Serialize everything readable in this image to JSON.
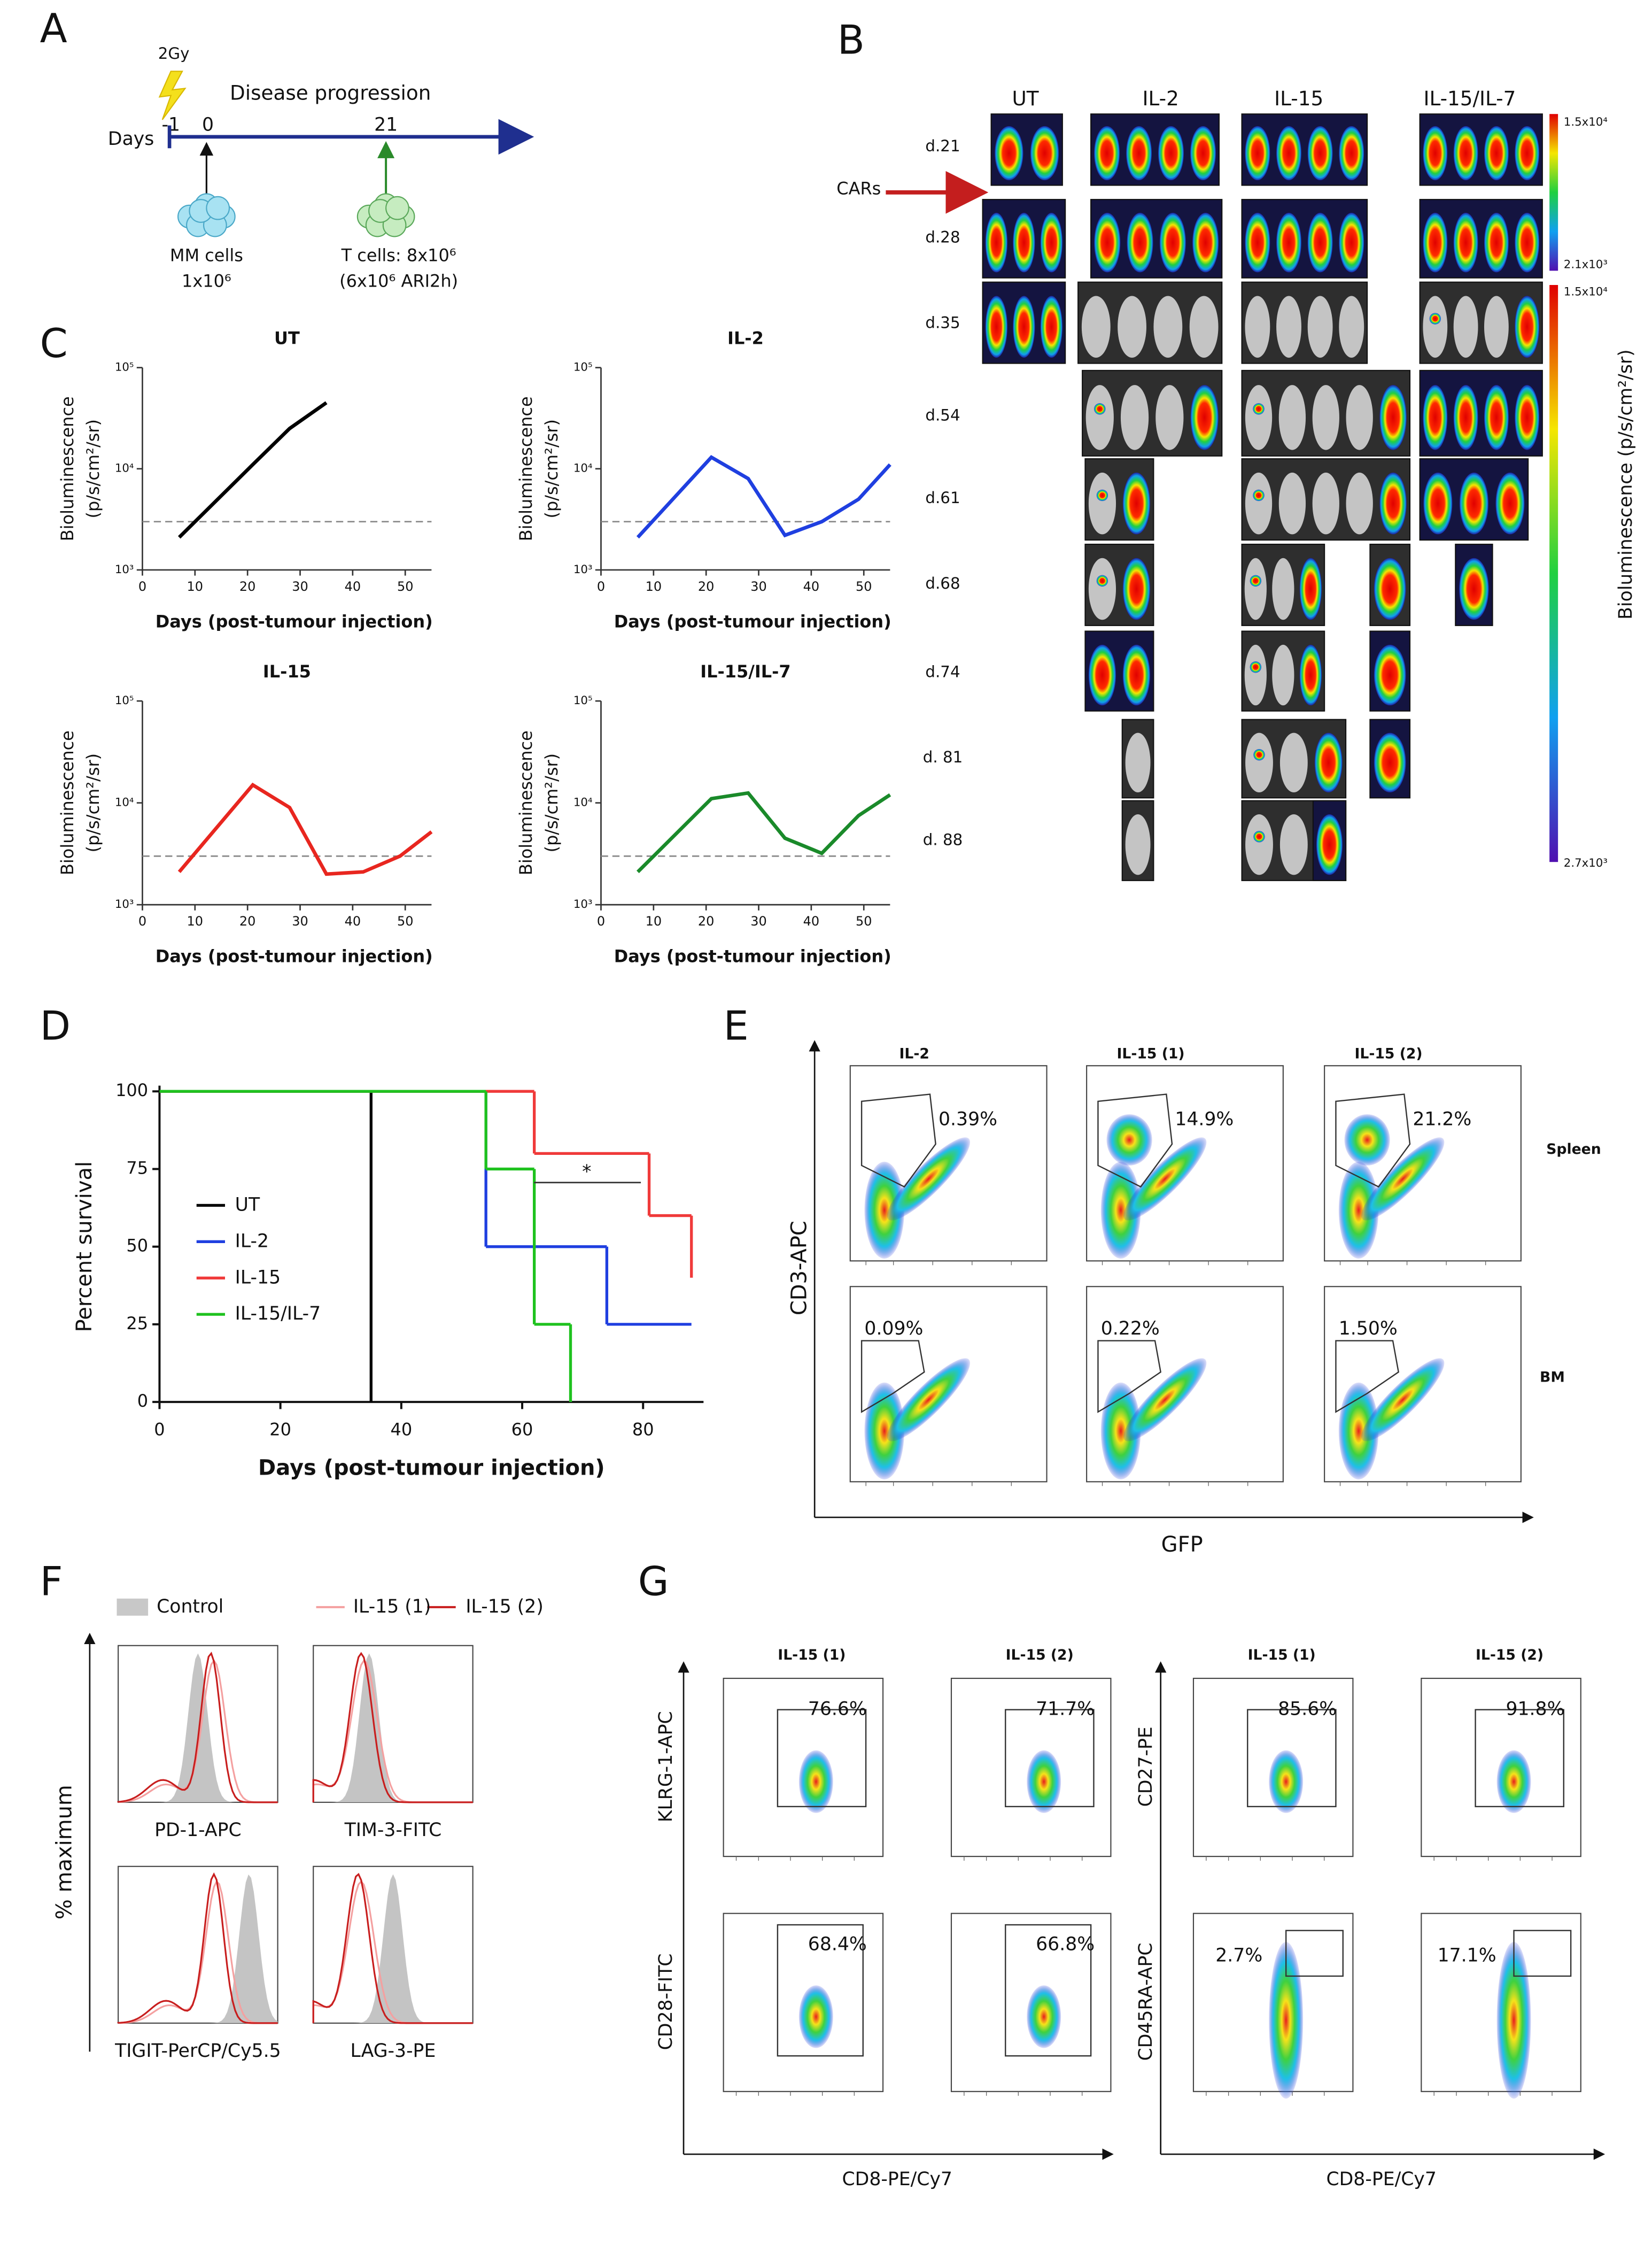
{
  "panel_labels": [
    "A",
    "B",
    "C",
    "D",
    "E",
    "F",
    "G"
  ],
  "panel_a": {
    "dose": "2Gy",
    "phase": "Disease progression",
    "axis_label": "Days",
    "days": [
      "-1",
      "0",
      "21"
    ],
    "mm_cells": [
      "MM cells",
      "1x10⁶"
    ],
    "t_cells": [
      "T cells: 8x10⁶",
      "(6x10⁶ ARI2h)"
    ]
  },
  "panel_b": {
    "groups": [
      "UT",
      "IL-2",
      "IL-15",
      "IL-15/IL-7"
    ],
    "days": [
      "d.21",
      "d.28",
      "d.35",
      "d.54",
      "d.61",
      "d.68",
      "d.74",
      "d. 81",
      "d. 88"
    ],
    "arrow_label": "CARs",
    "scale_top": [
      "1.5x10⁴",
      "2.1x10³"
    ],
    "scale_bottom": [
      "1.5x10⁴",
      "2.7x10³"
    ],
    "scale_label": "Bioluminescence (p/s/cm²/sr)"
  },
  "chart_data": [
    {
      "type": "line",
      "title": "UT",
      "x": [
        7,
        21,
        28,
        35
      ],
      "values": [
        2100,
        11000,
        25000,
        45000
      ],
      "color": "#000000",
      "threshold": 3000,
      "x_label": "Days (post-tumour injection)",
      "y_label": [
        "Bioluminescence",
        "(p/s/cm²/sr)"
      ],
      "xlim": [
        0,
        55
      ],
      "xticks": [
        0,
        10,
        20,
        30,
        40,
        50
      ],
      "ylim": [
        1000,
        100000
      ],
      "yticks": [
        {
          "value": 1000,
          "label": "10³"
        },
        {
          "value": 10000,
          "label": "10⁴"
        },
        {
          "value": 100000,
          "label": "10⁵"
        }
      ],
      "log_scale": true
    },
    {
      "type": "line",
      "title": "IL-2",
      "x": [
        7,
        21,
        28,
        35,
        42,
        49,
        55
      ],
      "values": [
        2100,
        13000,
        8000,
        2200,
        3000,
        5000,
        11000
      ],
      "color": "#1f3fe0",
      "threshold": 3000,
      "x_label": "Days (post-tumour injection)",
      "y_label": [
        "Bioluminescence",
        "(p/s/cm²/sr)"
      ],
      "xlim": [
        0,
        55
      ],
      "xticks": [
        0,
        10,
        20,
        30,
        40,
        50
      ],
      "ylim": [
        1000,
        100000
      ],
      "yticks": [
        {
          "value": 1000,
          "label": "10³"
        },
        {
          "value": 10000,
          "label": "10⁴"
        },
        {
          "value": 100000,
          "label": "10⁵"
        }
      ],
      "log_scale": true
    },
    {
      "type": "line",
      "title": "IL-15",
      "x": [
        7,
        21,
        28,
        35,
        42,
        49,
        55
      ],
      "values": [
        2100,
        15000,
        9000,
        2000,
        2100,
        3000,
        5200
      ],
      "color": "#e8261f",
      "threshold": 3000,
      "x_label": "Days (post-tumour injection)",
      "y_label": [
        "Bioluminescence",
        "(p/s/cm²/sr)"
      ],
      "xlim": [
        0,
        55
      ],
      "xticks": [
        0,
        10,
        20,
        30,
        40,
        50
      ],
      "ylim": [
        1000,
        100000
      ],
      "yticks": [
        {
          "value": 1000,
          "label": "10³"
        },
        {
          "value": 10000,
          "label": "10⁴"
        },
        {
          "value": 100000,
          "label": "10⁵"
        }
      ],
      "log_scale": true
    },
    {
      "type": "line",
      "title": "IL-15/IL-7",
      "x": [
        7,
        21,
        28,
        35,
        42,
        49,
        55
      ],
      "values": [
        2100,
        11000,
        12500,
        4500,
        3200,
        7500,
        12000
      ],
      "color": "#1a8a2a",
      "threshold": 3000,
      "x_label": "Days (post-tumour injection)",
      "y_label": [
        "Bioluminescence",
        "(p/s/cm²/sr)"
      ],
      "xlim": [
        0,
        55
      ],
      "xticks": [
        0,
        10,
        20,
        30,
        40,
        50
      ],
      "ylim": [
        1000,
        100000
      ],
      "yticks": [
        {
          "value": 1000,
          "label": "10³"
        },
        {
          "value": 10000,
          "label": "10⁴"
        },
        {
          "value": 100000,
          "label": "10⁵"
        }
      ],
      "log_scale": true
    },
    {
      "type": "step",
      "y_label": "Percent survival",
      "x_label": "Days (post-tumour injection)",
      "xlim": [
        0,
        90
      ],
      "xticks": [
        0,
        20,
        40,
        60,
        80
      ],
      "ylim": [
        0,
        100
      ],
      "yticks": [
        0,
        25,
        50,
        75,
        100
      ],
      "annotation": "*",
      "series": [
        {
          "name": "UT",
          "color": "#000000",
          "x": [
            0,
            35
          ],
          "values": [
            100,
            0
          ]
        },
        {
          "name": "IL-2",
          "color": "#1f3fe0",
          "x": [
            0,
            54,
            74,
            88
          ],
          "values": [
            100,
            50,
            25,
            25
          ]
        },
        {
          "name": "IL-15",
          "color": "#f03a3a",
          "x": [
            0,
            62,
            81,
            88
          ],
          "values": [
            100,
            80,
            60,
            40
          ]
        },
        {
          "name": "IL-15/IL-7",
          "color": "#1fc21f",
          "x": [
            0,
            54,
            62,
            68
          ],
          "values": [
            100,
            75,
            25,
            0
          ]
        }
      ]
    }
  ],
  "panel_e": {
    "columns": [
      "IL-2",
      "IL-15 (1)",
      "IL-15 (2)"
    ],
    "rows": [
      "Spleen",
      "BM"
    ],
    "gates": [
      [
        "0.39%",
        "14.9%",
        "21.2%"
      ],
      [
        "0.09%",
        "0.22%",
        "1.50%"
      ]
    ],
    "y_label": "CD3-APC",
    "x_label": "GFP"
  },
  "panel_f": {
    "legend": [
      "Control",
      "IL-15 (1)",
      "IL-15 (2)"
    ],
    "markers": [
      "PD-1-APC",
      "TIM-3-FITC",
      "TIGIT-PerCP/Cy5.5",
      "LAG-3-PE"
    ],
    "y_label": "% maximum"
  },
  "panel_g": {
    "columns": [
      "IL-15 (1)",
      "IL-15 (2)",
      "IL-15 (1)",
      "IL-15 (2)"
    ],
    "markers": [
      "KLRG-1-APC",
      "CD28-FITC",
      "CD27-PE",
      "CD45RA-APC"
    ],
    "gates": [
      [
        "76.6%",
        "71.7%",
        "85.6%",
        "91.8%"
      ],
      [
        "68.4%",
        "66.8%",
        "2.7%",
        "17.1%"
      ]
    ],
    "x_label": [
      "CD8-PE/Cy7",
      "CD8-PE/Cy7"
    ]
  }
}
